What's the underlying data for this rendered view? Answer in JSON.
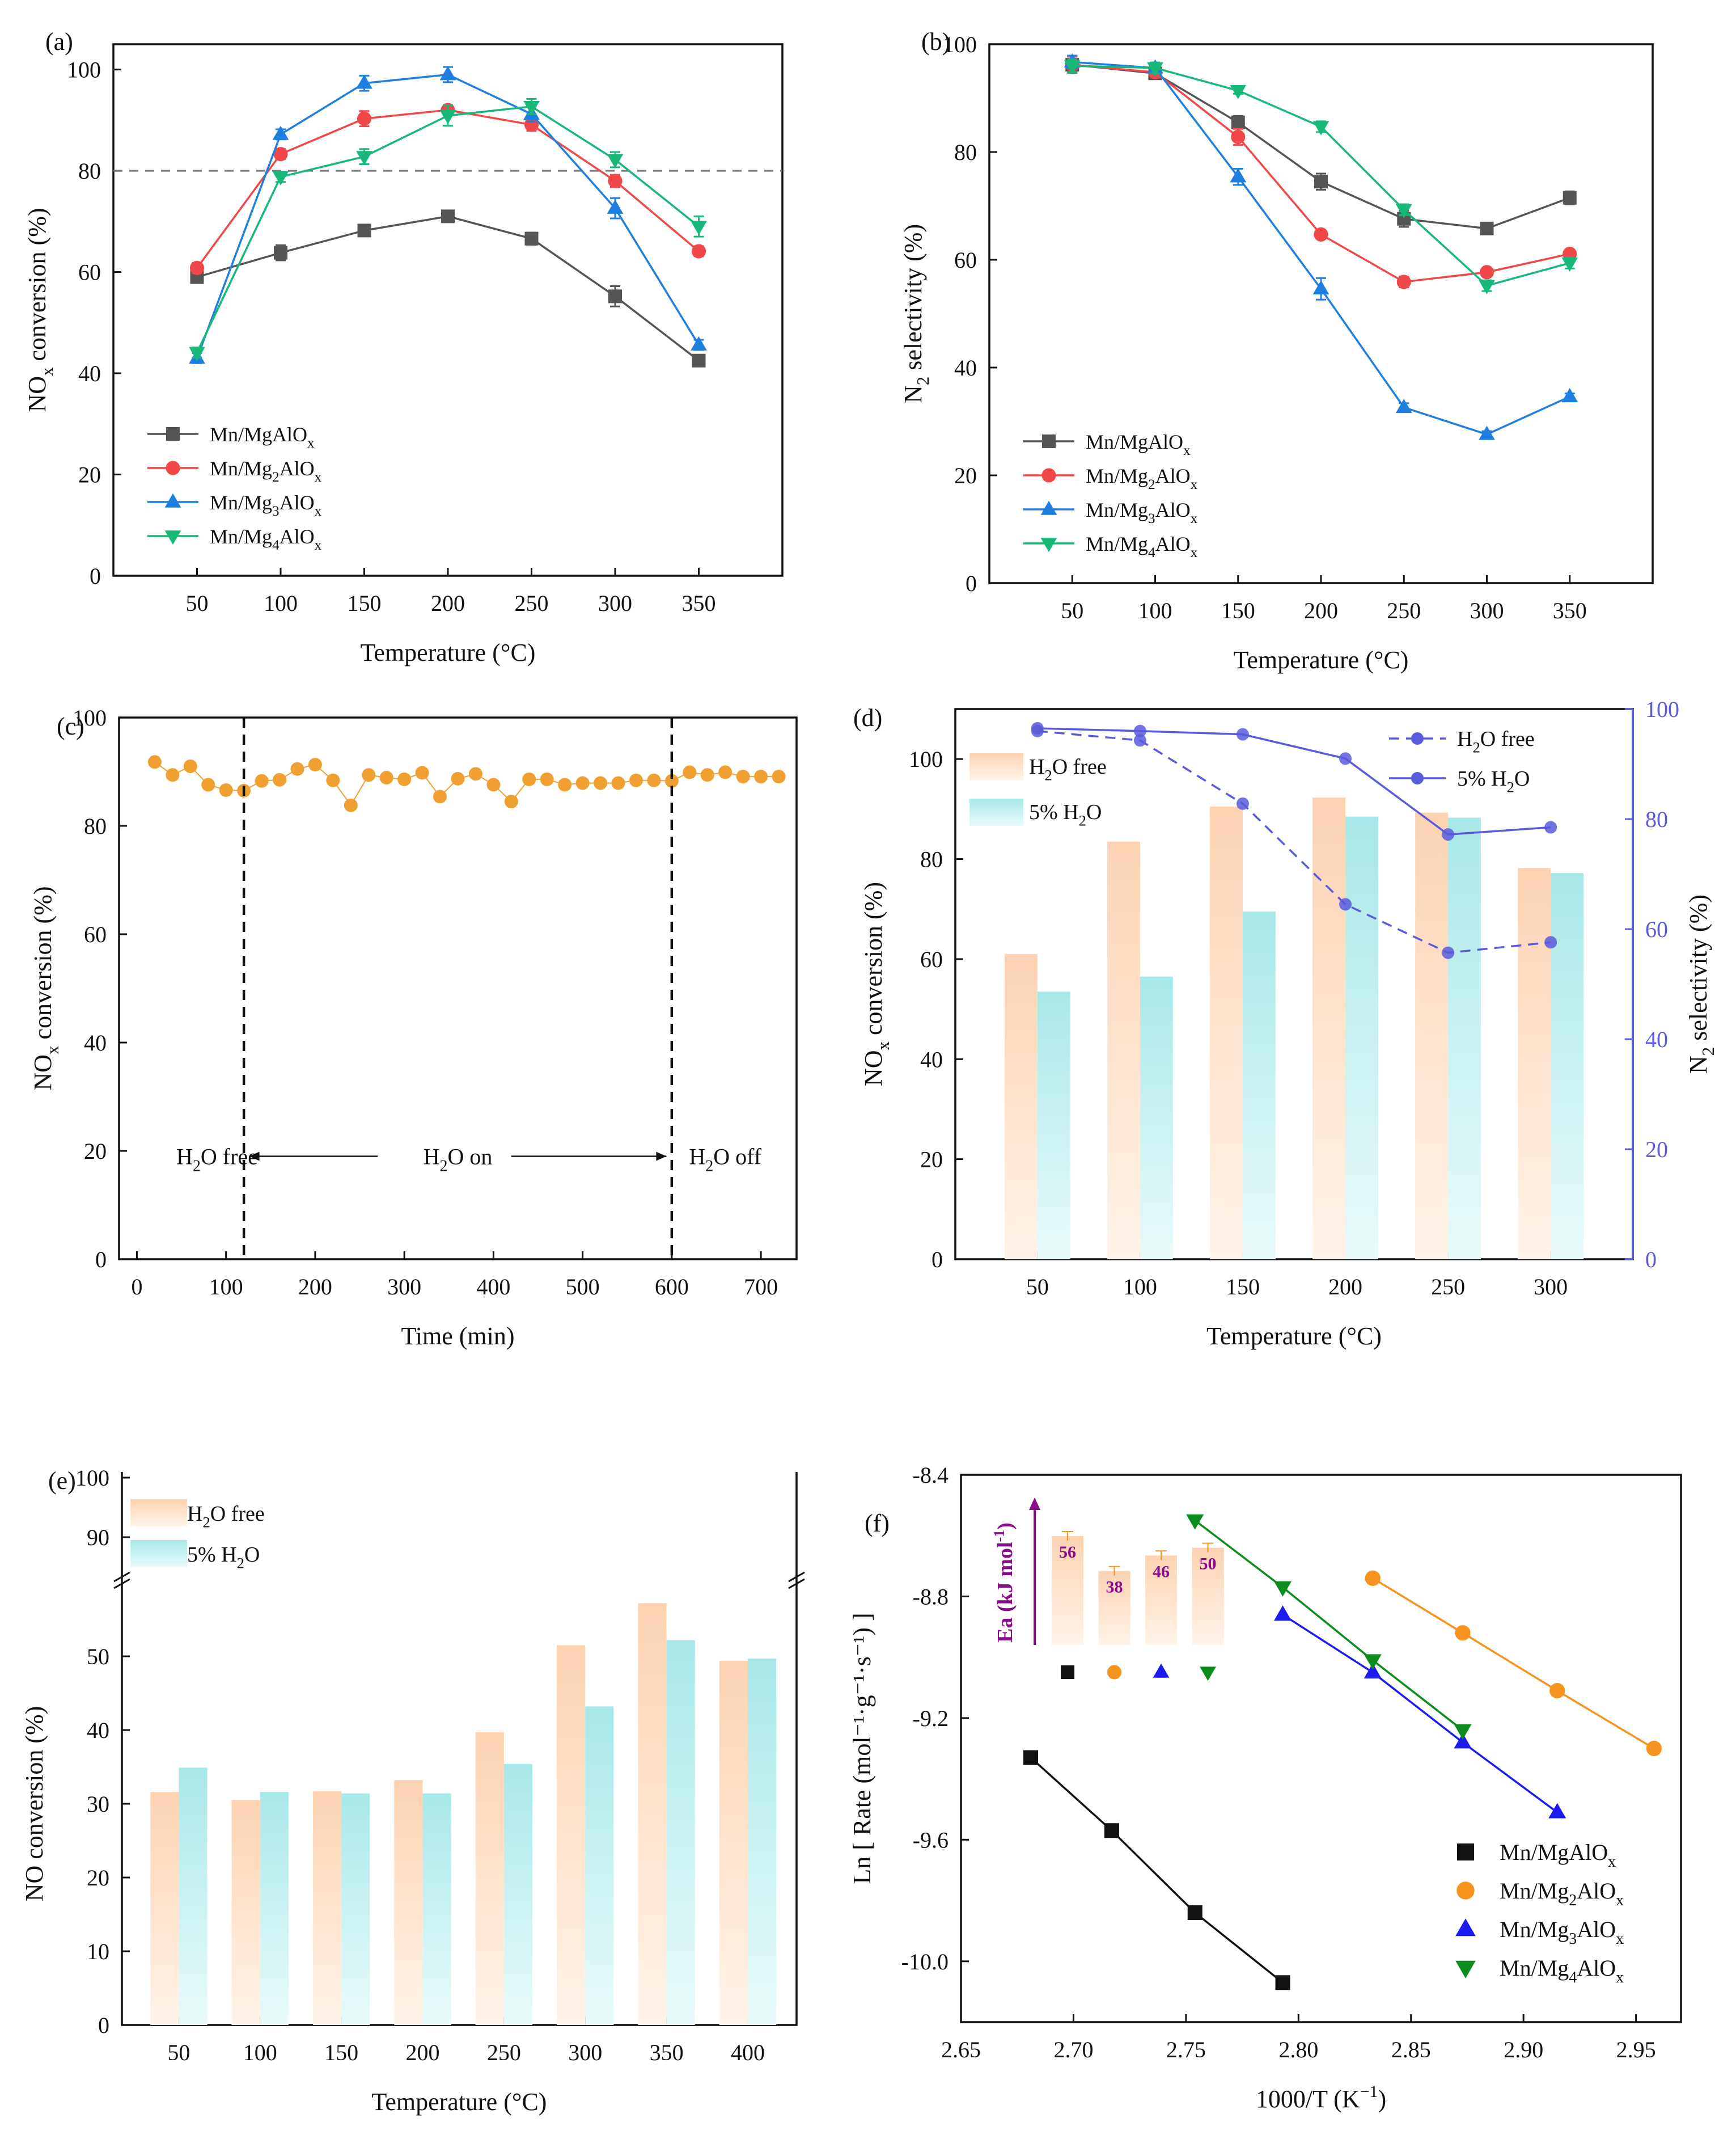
{
  "colors": {
    "MgAlOx": "#555555",
    "Mg2AlOx": "#f04848",
    "Mg3AlOx": "#1f7fe0",
    "Mg4AlOx": "#18b878",
    "orange_line": "#f0a030",
    "bar_orange": "#fcd2b2",
    "bar_cyan": "#a8e8e8",
    "purple": "#5a5adc",
    "f_black": "#111111",
    "f_orange": "#f7931e",
    "f_blue": "#1b1bf0",
    "f_green": "#0c8c1c",
    "f_ea_label": "#8a0a8a"
  },
  "chart_data": [
    {
      "panel": "(a)",
      "type": "line",
      "x": [
        50,
        100,
        150,
        200,
        250,
        300,
        350
      ],
      "xlabel": "Temperature (°C)",
      "ylabel_main": "NO",
      "ylabel_sub": "x",
      "ylabel_rest": " conversion (%)",
      "xlim": [
        0,
        400
      ],
      "ylim": [
        0,
        105
      ],
      "xticks": [
        "50",
        "100",
        "150",
        "200",
        "250",
        "300",
        "350"
      ],
      "yticks": [
        "0",
        "20",
        "40",
        "60",
        "80",
        "100"
      ],
      "ref_line": 80,
      "series": [
        {
          "key": "MgAlOx",
          "prefix": "Mn/MgAlO",
          "sub": "x",
          "marker": "square",
          "values": [
            59,
            63.8,
            68.2,
            71,
            66.6,
            55.2,
            42.5
          ],
          "err": [
            1,
            1.5,
            1,
            0.8,
            1.2,
            2,
            1
          ]
        },
        {
          "key": "Mg2AlOx",
          "prefix": "Mn/Mg",
          "mid": "2",
          "mid_text": "AlO",
          "sub": "x",
          "marker": "circle",
          "values": [
            60.8,
            83.3,
            90.3,
            92,
            89.1,
            78,
            64.1
          ],
          "err": [
            1,
            1,
            1.5,
            1,
            1.2,
            1.2,
            1
          ]
        },
        {
          "key": "Mg3AlOx",
          "prefix": "Mn/Mg",
          "mid": "3",
          "mid_text": "AlO",
          "sub": "x",
          "marker": "triangle-up",
          "values": [
            43,
            87.2,
            97.3,
            99,
            91.2,
            72.6,
            45.6
          ],
          "err": [
            1,
            1,
            1.5,
            1.5,
            1.5,
            2,
            1
          ]
        },
        {
          "key": "Mg4AlOx",
          "prefix": "Mn/Mg",
          "mid": "4",
          "mid_text": "AlO",
          "sub": "x",
          "marker": "triangle-down",
          "values": [
            44.1,
            78.8,
            82.8,
            90.9,
            92.7,
            82.2,
            69
          ],
          "err": [
            1,
            1,
            1.5,
            2,
            1.5,
            1.5,
            2
          ]
        }
      ]
    },
    {
      "panel": "(b)",
      "type": "line",
      "x": [
        50,
        100,
        150,
        200,
        250,
        300,
        350
      ],
      "xlabel": "Temperature (°C)",
      "ylabel_main": "N",
      "ylabel_sub": "2",
      "ylabel_rest": " selectivity (%)",
      "xlim": [
        0,
        400
      ],
      "ylim": [
        0,
        100
      ],
      "xticks": [
        "50",
        "100",
        "150",
        "200",
        "250",
        "300",
        "350"
      ],
      "yticks": [
        "0",
        "20",
        "40",
        "60",
        "80",
        "100"
      ],
      "series": [
        {
          "key": "MgAlOx",
          "prefix": "Mn/MgAlO",
          "sub": "x",
          "marker": "square",
          "values": [
            96.2,
            94.6,
            85.5,
            74.5,
            67.6,
            65.8,
            71.5
          ],
          "err": [
            1.5,
            1,
            1.2,
            1.5,
            1.5,
            0.8,
            1.2
          ]
        },
        {
          "key": "Mg2AlOx",
          "prefix": "Mn/Mg",
          "mid": "2",
          "mid_text": "AlO",
          "sub": "x",
          "marker": "circle",
          "values": [
            96.2,
            94.8,
            82.8,
            64.7,
            55.9,
            57.7,
            61.1
          ],
          "err": [
            1.5,
            1,
            1.5,
            0.8,
            1,
            0.8,
            0.8
          ]
        },
        {
          "key": "Mg3AlOx",
          "prefix": "Mn/Mg",
          "mid": "3",
          "mid_text": "AlO",
          "sub": "x",
          "marker": "triangle-up",
          "values": [
            96.7,
            95.6,
            75.4,
            54.6,
            32.6,
            27.6,
            34.6
          ],
          "err": [
            1.2,
            1,
            1.5,
            2,
            0.8,
            0.6,
            0.6
          ]
        },
        {
          "key": "Mg4AlOx",
          "prefix": "Mn/Mg",
          "mid": "4",
          "mid_text": "AlO",
          "sub": "x",
          "marker": "triangle-down",
          "values": [
            96,
            95.6,
            91.4,
            84.7,
            69.3,
            55.2,
            59.4
          ],
          "err": [
            1.2,
            1,
            0.6,
            1,
            1,
            1,
            1
          ]
        }
      ]
    },
    {
      "panel": "(c)",
      "type": "line",
      "xlabel": "Time (min)",
      "ylabel_main": "NO",
      "ylabel_sub": "x",
      "ylabel_rest": " conversion (%)",
      "xlim": [
        -20,
        740
      ],
      "ylim": [
        0,
        100
      ],
      "xticks": [
        "0",
        "100",
        "200",
        "300",
        "400",
        "500",
        "600",
        "700"
      ],
      "yticks": [
        "0",
        "20",
        "40",
        "60",
        "80",
        "100"
      ],
      "x": [
        20,
        40,
        60,
        80,
        100,
        120,
        140,
        160,
        180,
        200,
        220,
        240,
        260,
        280,
        300,
        320,
        340,
        360,
        380,
        400,
        420,
        440,
        460,
        480,
        500,
        520,
        540,
        560,
        580,
        600,
        620,
        640,
        660,
        680,
        700,
        720
      ],
      "values": [
        91.8,
        89.4,
        91,
        87.6,
        86.6,
        86.5,
        88.3,
        88.5,
        90.5,
        91.3,
        88.4,
        83.8,
        89.4,
        88.9,
        88.6,
        89.8,
        85.4,
        88.7,
        89.6,
        87.6,
        84.5,
        88.6,
        88.6,
        87.6,
        87.9,
        87.9,
        87.9,
        88.4,
        88.4,
        88.3,
        89.9,
        89.4,
        89.9,
        89.1,
        89.1,
        89.1
      ],
      "phase_lines": [
        120,
        600
      ],
      "phase_labels": {
        "free_main": "H",
        "free_sub": "2",
        "free_rest": "O free",
        "on_main": "H",
        "on_sub": "2",
        "on_rest": "O  on",
        "off_main": "H",
        "off_sub": "2",
        "off_rest": "O off"
      }
    },
    {
      "panel": "(d)",
      "type": "bar",
      "categories": [
        "50",
        "100",
        "150",
        "200",
        "250",
        "300"
      ],
      "xlabel": "Temperature (°C)",
      "ylabel_main": "NO",
      "ylabel_sub": "x",
      "ylabel_rest": " conversion (%)",
      "y2label_main": "N",
      "y2label_sub": "2",
      "y2label_rest": " selectivity (%)",
      "ylim": [
        0,
        110
      ],
      "y2lim": [
        0,
        100
      ],
      "yticks": [
        "0",
        "20",
        "40",
        "60",
        "80",
        "100"
      ],
      "y2ticks": [
        "0",
        "20",
        "40",
        "60",
        "80",
        "100"
      ],
      "bars": [
        {
          "name_main": "H",
          "name_sub": "2",
          "name_rest": "O free",
          "values": [
            61,
            83.5,
            90.5,
            92.3,
            89.3,
            78.2
          ]
        },
        {
          "name_main": "5% H",
          "name_sub": "2",
          "name_rest": "O",
          "values": [
            53.5,
            56.5,
            69.5,
            88.5,
            88.3,
            77.2
          ]
        }
      ],
      "lines": [
        {
          "name_main": "H",
          "name_sub": "2",
          "name_rest": "O free",
          "dashed": true,
          "values": [
            96,
            94.3,
            82.8,
            64.5,
            55.7,
            57.6
          ]
        },
        {
          "name_main": "5% H",
          "name_sub": "2",
          "name_rest": "O",
          "dashed": false,
          "values": [
            96.5,
            96,
            95.4,
            91,
            77.2,
            78.5
          ]
        }
      ]
    },
    {
      "panel": "(e)",
      "type": "bar",
      "categories": [
        "50",
        "100",
        "150",
        "200",
        "250",
        "300",
        "350",
        "400"
      ],
      "xlabel": "Temperature (°C)",
      "ylabel": "NO conversion (%)",
      "ylim_lower": [
        0,
        60
      ],
      "ylim_upper": [
        90,
        100
      ],
      "yticks": [
        "0",
        "10",
        "20",
        "30",
        "40",
        "50",
        "90",
        "100"
      ],
      "series": [
        {
          "name_main": "H",
          "name_sub": "2",
          "name_rest": "O free",
          "values": [
            31.6,
            30.5,
            31.7,
            33.2,
            39.7,
            51.5,
            57.2,
            49.4
          ]
        },
        {
          "name_main": "5% H",
          "name_sub": "2",
          "name_rest": "O",
          "values": [
            34.9,
            31.6,
            31.4,
            31.4,
            35.4,
            43.2,
            52.2,
            49.7
          ]
        }
      ]
    },
    {
      "panel": "(f)",
      "type": "scatter",
      "xlabel_main": "1000/T (K",
      "xlabel_sup": "−1",
      "xlabel_rest": ")",
      "ylabel": "Ln [ Rate (mol⁻¹·g⁻¹·s⁻¹) ]",
      "xlim": [
        2.65,
        2.97
      ],
      "ylim": [
        -10.2,
        -8.4
      ],
      "xticks": [
        "2.65",
        "2.70",
        "2.75",
        "2.80",
        "2.85",
        "2.90",
        "2.95"
      ],
      "yticks": [
        "-8.4",
        "-8.8",
        "-9.2",
        "-9.6",
        "-10.0"
      ],
      "series": [
        {
          "key": "f_black",
          "prefix": "Mn/MgAlO",
          "sub": "x",
          "marker": "square",
          "x": [
            2.681,
            2.717,
            2.754,
            2.793
          ],
          "y": [
            -9.33,
            -9.57,
            -9.84,
            -10.07
          ]
        },
        {
          "key": "f_orange",
          "prefix": "Mn/Mg",
          "mid": "2",
          "mid_text": "AlO",
          "sub": "x",
          "marker": "circle",
          "x": [
            2.833,
            2.873,
            2.915,
            2.958
          ],
          "y": [
            -8.74,
            -8.92,
            -9.11,
            -9.3
          ]
        },
        {
          "key": "f_blue",
          "prefix": "Mn/Mg",
          "mid": "3",
          "mid_text": "AlO",
          "sub": "x",
          "marker": "triangle-up",
          "x": [
            2.793,
            2.833,
            2.873,
            2.915
          ],
          "y": [
            -8.86,
            -9.05,
            -9.28,
            -9.51
          ]
        },
        {
          "key": "f_green",
          "prefix": "Mn/Mg",
          "mid": "4",
          "mid_text": "AlO",
          "sub": "x",
          "marker": "triangle-down",
          "x": [
            2.754,
            2.793,
            2.833,
            2.873
          ],
          "y": [
            -8.55,
            -8.77,
            -9.01,
            -9.24
          ]
        }
      ],
      "inset": {
        "ylabel": "Ea (kJ mol",
        "ylabel_sup": "-1",
        "ylabel_close": ")",
        "ymax": 70,
        "values": [
          56,
          38,
          46,
          50
        ],
        "labels": [
          "56",
          "38",
          "46",
          "50"
        ],
        "markers": [
          "square",
          "circle",
          "triangle-up",
          "triangle-down"
        ],
        "marker_keys": [
          "f_black",
          "f_orange",
          "f_blue",
          "f_green"
        ]
      }
    }
  ]
}
